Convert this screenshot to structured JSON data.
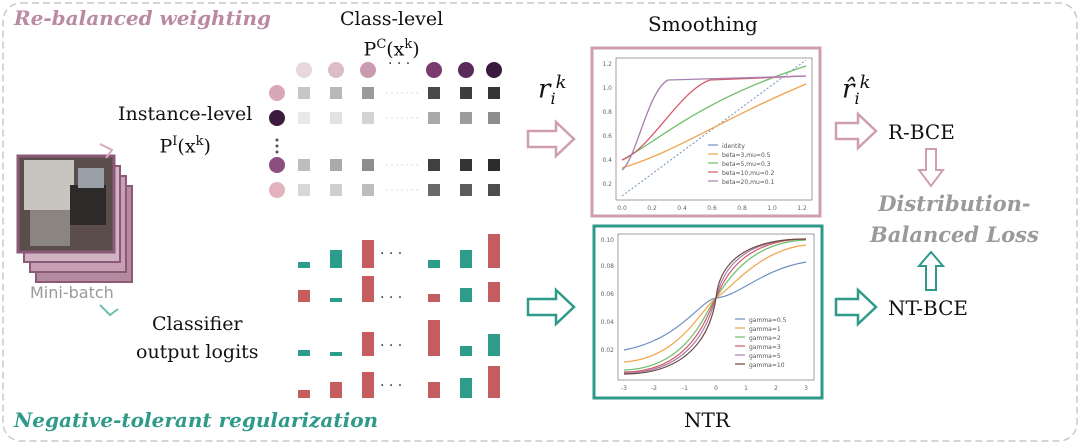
{
  "sections": {
    "top": "Re-balanced weighting",
    "bottom": "Negative-tolerant regularization"
  },
  "labels": {
    "class_level_1": "Class-level",
    "class_level_2": "P",
    "class_level_sup": "C",
    "class_level_3": "(x",
    "class_level_sup_k": "k",
    "class_level_4": ")",
    "instance_level_1": "Instance-level",
    "instance_level_2": "P",
    "instance_level_sup": "I",
    "instance_level_3": "(x",
    "instance_level_sup_k": "k",
    "instance_level_4": ")",
    "classifier_1": "Classifier",
    "classifier_2": "output logits",
    "mini_batch": "Mini-batch",
    "smoothing": "Smoothing",
    "ntr": "NTR",
    "r_ik": "r",
    "r_ik_sub": "i",
    "r_ik_sup": "k",
    "rhat_ik": "r̂",
    "rhat_ik_sub": "i",
    "rhat_ik_sup": "k",
    "rbce": "R-BCE",
    "ntbce": "NT-BCE",
    "db_loss_1": "Distribution-",
    "db_loss_2": "Balanced Loss",
    "dots": "· · ·"
  },
  "smoothing_plot": {
    "x_ticks": [
      "0.0",
      "0.2",
      "0.4",
      "0.6",
      "0.8",
      "1.0",
      "1.2"
    ],
    "y_ticks": [
      "1.2",
      "1.0",
      "0.8",
      "0.6",
      "0.4",
      "0.2"
    ],
    "legend": [
      "identity",
      "beta=3,mu=0.5",
      "beta=5,mu=0.3",
      "beta=10,mu=0.2",
      "beta=20,mu=0.1"
    ]
  },
  "ntr_plot": {
    "x_ticks": [
      "-3",
      "-2",
      "-1",
      "0",
      "1",
      "2",
      "3"
    ],
    "y_ticks": [
      "0.10",
      "0.08",
      "0.06",
      "0.04",
      "0.02"
    ],
    "legend": [
      "gamma=0.5",
      "gamma=1",
      "gamma=2",
      "gamma=3",
      "gamma=5",
      "gamma=10"
    ]
  },
  "colors": {
    "pink": "#c98aa3",
    "pink_light": "#e8cdd6",
    "teal": "#2f9a89",
    "purple_dark": "#4a1f4a",
    "bar_red": "#c45c60",
    "bar_teal": "#2d9c8a"
  }
}
